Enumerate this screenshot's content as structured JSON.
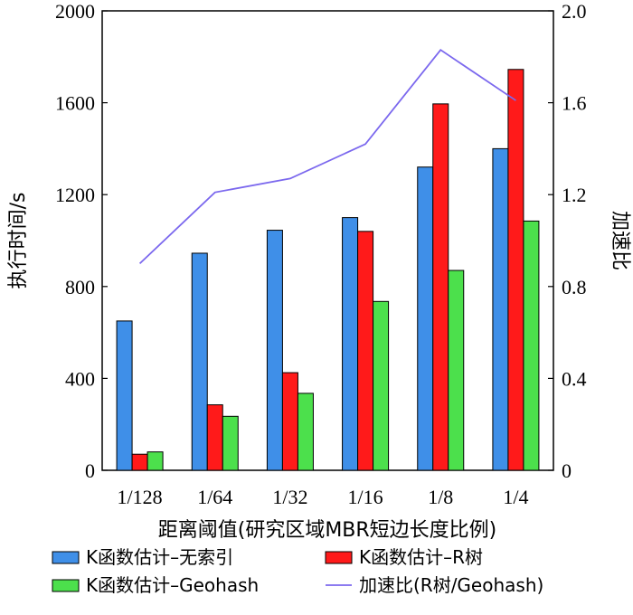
{
  "chart_data": {
    "type": "bar",
    "categories": [
      "1/128",
      "1/64",
      "1/32",
      "1/16",
      "1/8",
      "1/4"
    ],
    "series": [
      {
        "name": "K函数估计–无索引",
        "type": "bar",
        "axis": "left",
        "color": "#3f8fe8",
        "values": [
          650,
          945,
          1045,
          1100,
          1320,
          1400
        ]
      },
      {
        "name": "K函数估计–R树",
        "type": "bar",
        "axis": "left",
        "color": "#ff1a1a",
        "values": [
          70,
          285,
          425,
          1040,
          1595,
          1745
        ]
      },
      {
        "name": "K函数估计–Geohash",
        "type": "bar",
        "axis": "left",
        "color": "#4ce04c",
        "values": [
          80,
          235,
          335,
          735,
          870,
          1085
        ]
      },
      {
        "name": "加速比(R树/Geohash)",
        "type": "line",
        "axis": "right",
        "color": "#7b68ee",
        "values": [
          0.9,
          1.21,
          1.27,
          1.42,
          1.83,
          1.61
        ]
      }
    ],
    "xlabel": "距离阈值(研究区域MBR短边长度比例)",
    "ylabel": "执行时间/s",
    "y2label": "加速比",
    "ylim": [
      0,
      2000
    ],
    "yticks": [
      0,
      400,
      800,
      1200,
      1600,
      2000
    ],
    "y2lim": [
      0,
      2.0
    ],
    "y2ticks": [
      "0",
      "0.4",
      "0.8",
      "1.2",
      "1.6",
      "2.0"
    ],
    "grid": false,
    "legend_position": "bottom"
  }
}
